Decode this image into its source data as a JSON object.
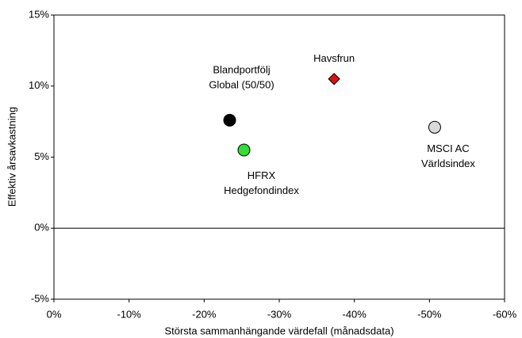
{
  "chart_data": {
    "type": "scatter",
    "xlabel": "Största sammanhängande värdefall (månadsdata)",
    "ylabel": "Effektiv årsavkastning",
    "xlim": [
      0,
      -60
    ],
    "xticks": [
      {
        "value": 0,
        "label": "0%"
      },
      {
        "value": -10,
        "label": "-10%"
      },
      {
        "value": -20,
        "label": "-20%"
      },
      {
        "value": -30,
        "label": "-30%"
      },
      {
        "value": -40,
        "label": "-40%"
      },
      {
        "value": -50,
        "label": "-50%"
      },
      {
        "value": -60,
        "label": "-60%"
      }
    ],
    "ylim": [
      -5,
      15
    ],
    "yticks": [
      {
        "value": -5,
        "label": "-5%"
      },
      {
        "value": 0,
        "label": "0%"
      },
      {
        "value": 5,
        "label": "5%"
      },
      {
        "value": 10,
        "label": "10%"
      },
      {
        "value": 15,
        "label": "15%"
      }
    ],
    "series": [
      {
        "name": [
          "Blandportfölj",
          "Global (50/50)"
        ],
        "color": "#000000",
        "marker": "circle",
        "x": [
          -23.4
        ],
        "values": [
          7.6
        ]
      },
      {
        "name": [
          "HFRX",
          "Hedgefondindex"
        ],
        "color": "#33dd33",
        "marker": "circle",
        "x": [
          -25.3
        ],
        "values": [
          5.5
        ]
      },
      {
        "name": [
          "Havsfrun"
        ],
        "color": "#dd1111",
        "marker": "diamond",
        "x": [
          -37.3
        ],
        "values": [
          10.5
        ]
      },
      {
        "name": [
          "MSCI AC",
          "Världsindex"
        ],
        "color": "#d9d9d9",
        "marker": "circle",
        "x": [
          -50.7
        ],
        "values": [
          7.1
        ]
      }
    ]
  }
}
